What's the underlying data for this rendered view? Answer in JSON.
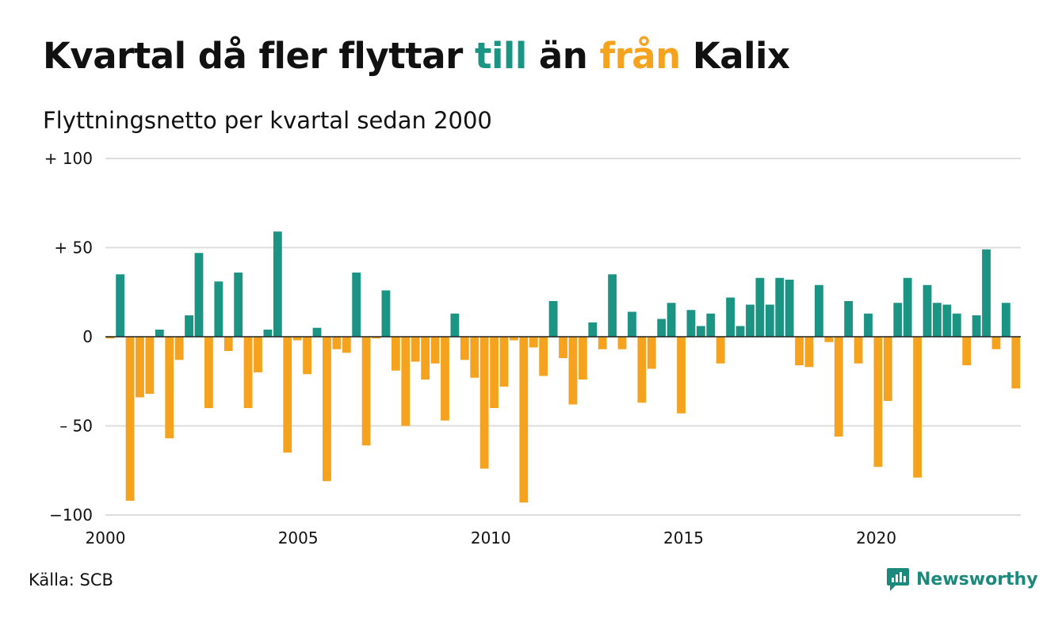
{
  "header": {
    "title_part1": "Kvartal då fler flyttar ",
    "title_pos": "till",
    "title_part2": " än ",
    "title_neg": "från",
    "title_part3": " Kalix",
    "subtitle": "Flyttningsnetto per kvartal sedan 2000"
  },
  "footer": {
    "source": "Källa: SCB",
    "brand": "Newsworthy",
    "brand_icon": "newsworthy-logo-icon"
  },
  "colors": {
    "positive": "#1b9484",
    "negative": "#f5a31e",
    "grid": "#dddddd",
    "text": "#111111",
    "brand": "#1b8a7c"
  },
  "chart_data": {
    "type": "bar",
    "title": "Kvartal då fler flyttar till än från Kalix",
    "subtitle": "Flyttningsnetto per kvartal sedan 2000",
    "xlabel": "",
    "ylabel": "",
    "ylim": [
      -100,
      100
    ],
    "xlim": [
      2000,
      2023.75
    ],
    "yticks": [
      {
        "value": 100,
        "label": "+ 100"
      },
      {
        "value": 50,
        "label": "+  50"
      },
      {
        "value": 0,
        "label": "0"
      },
      {
        "value": -50,
        "label": "– 50"
      },
      {
        "value": -100,
        "label": "−100"
      }
    ],
    "xticks": [
      {
        "value": 2000,
        "label": "2000"
      },
      {
        "value": 2005,
        "label": "2005"
      },
      {
        "value": 2010,
        "label": "2010"
      },
      {
        "value": 2015,
        "label": "2015"
      },
      {
        "value": 2020,
        "label": "2020"
      }
    ],
    "grid": true,
    "legend": "none",
    "start_quarter": "2000 K1",
    "values": [
      -1,
      35,
      -92,
      -34,
      -32,
      4,
      -57,
      -13,
      12,
      47,
      -40,
      31,
      -8,
      36,
      -40,
      -20,
      4,
      59,
      -65,
      -2,
      -21,
      5,
      -81,
      -7,
      -9,
      36,
      -61,
      -1,
      26,
      -19,
      -50,
      -14,
      -24,
      -15,
      -47,
      13,
      -13,
      -23,
      -74,
      -40,
      -28,
      -2,
      -93,
      -6,
      -22,
      20,
      -12,
      -38,
      -24,
      8,
      -7,
      35,
      -7,
      14,
      -37,
      -18,
      10,
      19,
      -43,
      15,
      6,
      13,
      -15,
      22,
      6,
      18,
      33,
      18,
      33,
      32,
      -16,
      -17,
      29,
      -3,
      -56,
      20,
      -15,
      13,
      -73,
      -36,
      19,
      33,
      -79,
      29,
      19,
      18,
      13,
      -16,
      12,
      49,
      -7,
      19,
      -29
    ]
  }
}
